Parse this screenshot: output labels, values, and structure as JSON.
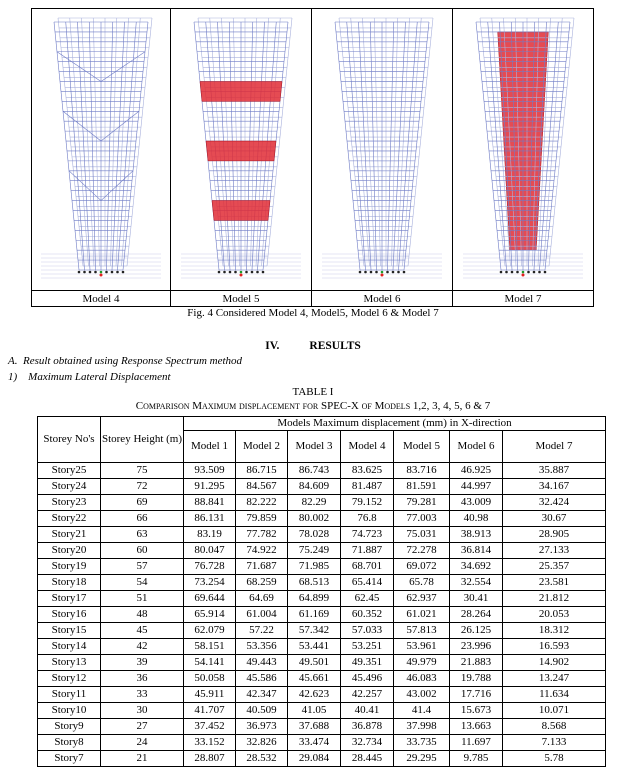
{
  "figure": {
    "panels": [
      "Model 4",
      "Model 5",
      "Model 6",
      "Model 7"
    ],
    "caption": "Fig. 4 Considered Model 4, Model5, Model 6 & Model 7"
  },
  "section": {
    "number": "IV.",
    "title": "RESULTS"
  },
  "subsection": {
    "label": "A.",
    "title": "Result obtained using Response Spectrum method"
  },
  "subsubsection": {
    "label": "1)",
    "title": "Maximum Lateral Displacement"
  },
  "table": {
    "label": "TABLE I",
    "caption": "Comparison Maximum displacement for SPEC-X of Models 1,2, 3, 4, 5, 6 & 7",
    "group_header": "Models Maximum displacement (mm) in X-direction",
    "columns": [
      "Storey No's",
      "Storey Height (m)",
      "Model 1",
      "Model 2",
      "Model 3",
      "Model 4",
      "Model 5",
      "Model 6",
      "Model 7"
    ],
    "rows": [
      [
        "Story25",
        75,
        93.509,
        86.715,
        86.743,
        83.625,
        83.716,
        46.925,
        35.887
      ],
      [
        "Story24",
        72,
        91.295,
        84.567,
        84.609,
        81.487,
        81.591,
        44.997,
        34.167
      ],
      [
        "Story23",
        69,
        88.841,
        82.222,
        82.29,
        79.152,
        79.281,
        43.009,
        32.424
      ],
      [
        "Story22",
        66,
        86.131,
        79.859,
        80.002,
        76.8,
        77.003,
        40.98,
        30.67
      ],
      [
        "Story21",
        63,
        83.19,
        77.782,
        78.028,
        74.723,
        75.031,
        38.913,
        28.905
      ],
      [
        "Story20",
        60,
        80.047,
        74.922,
        75.249,
        71.887,
        72.278,
        36.814,
        27.133
      ],
      [
        "Story19",
        57,
        76.728,
        71.687,
        71.985,
        68.701,
        69.072,
        34.692,
        25.357
      ],
      [
        "Story18",
        54,
        73.254,
        68.259,
        68.513,
        65.414,
        65.78,
        32.554,
        23.581
      ],
      [
        "Story17",
        51,
        69.644,
        64.69,
        64.899,
        62.45,
        62.937,
        30.41,
        21.812
      ],
      [
        "Story16",
        48,
        65.914,
        61.004,
        61.169,
        60.352,
        61.021,
        28.264,
        20.053
      ],
      [
        "Story15",
        45,
        62.079,
        57.22,
        57.342,
        57.033,
        57.813,
        26.125,
        18.312
      ],
      [
        "Story14",
        42,
        58.151,
        53.356,
        53.441,
        53.251,
        53.961,
        23.996,
        16.593
      ],
      [
        "Story13",
        39,
        54.141,
        49.443,
        49.501,
        49.351,
        49.979,
        21.883,
        14.902
      ],
      [
        "Story12",
        36,
        50.058,
        45.586,
        45.661,
        45.496,
        46.083,
        19.788,
        13.247
      ],
      [
        "Story11",
        33,
        45.911,
        42.347,
        42.623,
        42.257,
        43.002,
        17.716,
        11.634
      ],
      [
        "Story10",
        30,
        41.707,
        40.509,
        41.05,
        40.41,
        41.4,
        15.673,
        10.071
      ],
      [
        "Story9",
        27,
        37.452,
        36.973,
        37.688,
        36.878,
        37.998,
        13.663,
        8.568
      ],
      [
        "Story8",
        24,
        33.152,
        32.826,
        33.474,
        32.734,
        33.735,
        11.697,
        7.133
      ],
      [
        "Story7",
        21,
        28.807,
        28.532,
        29.084,
        28.445,
        29.295,
        9.785,
        5.78
      ]
    ]
  }
}
